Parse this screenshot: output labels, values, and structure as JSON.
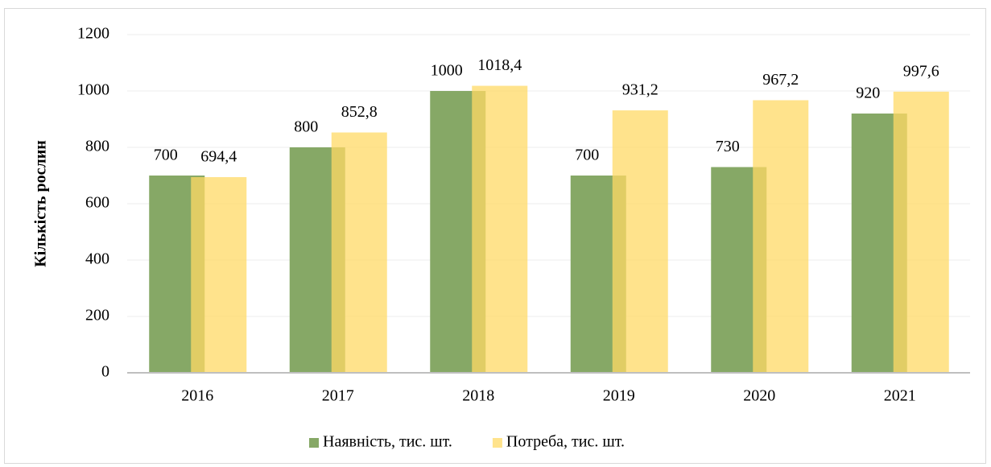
{
  "chart_data": {
    "type": "bar",
    "y_label": "Кількість рослин",
    "categories": [
      "2016",
      "2017",
      "2018",
      "2019",
      "2020",
      "2021"
    ],
    "series": [
      {
        "name": "Наявність, тис. шт.",
        "color": "#86a866",
        "values": [
          700,
          800,
          1000,
          700,
          730,
          920
        ]
      },
      {
        "name": "Потреба, тис. шт.",
        "color": "#ffd966",
        "values": [
          694.4,
          852.8,
          1018.4,
          931.2,
          967.2,
          997.6
        ],
        "value_labels": [
          "694,4",
          "852,8",
          "1018,4",
          "931,2",
          "967,2",
          "997,6"
        ]
      }
    ],
    "ylim": [
      0,
      1200
    ],
    "yticks": [
      0,
      200,
      400,
      600,
      800,
      1000,
      1200
    ],
    "grid": true,
    "legend": "bottom"
  }
}
